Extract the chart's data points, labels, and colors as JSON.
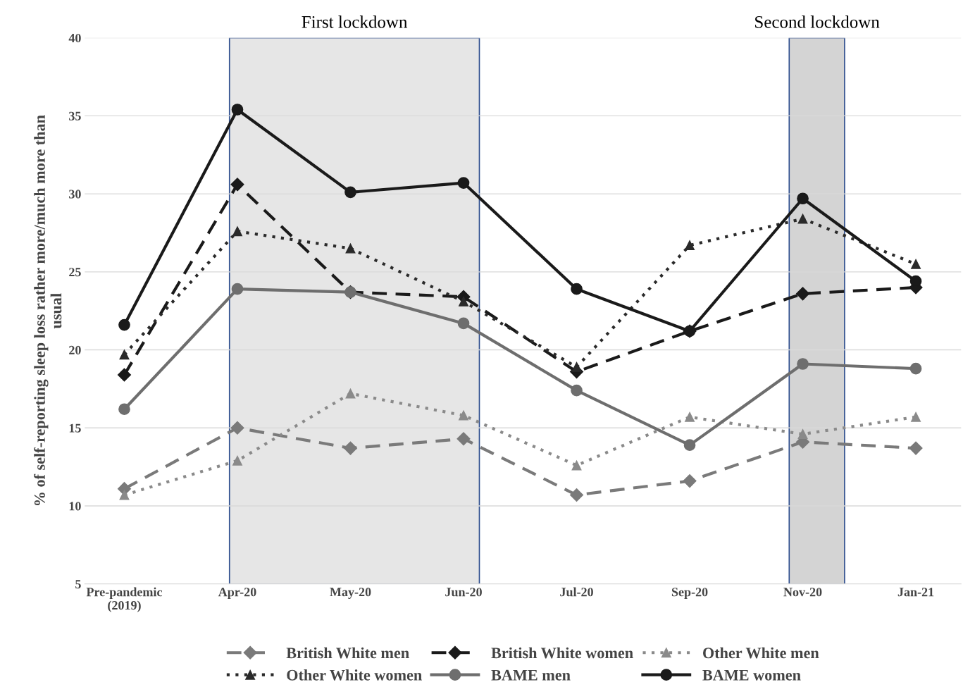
{
  "chart_data": {
    "type": "line",
    "ylabel": "% of self-reporting sleep loss rather more/much more than\nusual",
    "categories": [
      "Pre-pandemic\n(2019)",
      "Apr-20",
      "May-20",
      "Jun-20",
      "Jul-20",
      "Sep-20",
      "Nov-20",
      "Jan-21"
    ],
    "series": [
      {
        "name": "British White men",
        "color": "#7a7a7a",
        "line_style": "dashed",
        "marker": "diamond",
        "values": [
          11.1,
          15.0,
          13.7,
          14.3,
          10.7,
          11.6,
          14.1,
          13.7
        ]
      },
      {
        "name": "British White women",
        "color": "#1a1a1a",
        "line_style": "dashed",
        "marker": "diamond",
        "values": [
          18.4,
          30.6,
          23.7,
          23.4,
          18.6,
          21.2,
          23.6,
          24.0
        ]
      },
      {
        "name": "Other White men",
        "color": "#8a8a8a",
        "line_style": "dotted",
        "marker": "triangle",
        "values": [
          10.7,
          12.9,
          17.2,
          15.8,
          12.6,
          15.7,
          14.6,
          15.7
        ]
      },
      {
        "name": "Other White women",
        "color": "#2a2a2a",
        "line_style": "dotted",
        "marker": "triangle",
        "values": [
          19.7,
          27.6,
          26.5,
          23.1,
          18.9,
          26.7,
          28.4,
          25.5
        ]
      },
      {
        "name": "BAME men",
        "color": "#6e6e6e",
        "line_style": "solid",
        "marker": "circle",
        "values": [
          16.2,
          23.9,
          23.7,
          21.7,
          17.4,
          13.9,
          19.1,
          18.8
        ]
      },
      {
        "name": "BAME women",
        "color": "#1a1a1a",
        "line_style": "solid",
        "marker": "circle",
        "values": [
          21.6,
          35.4,
          30.1,
          30.7,
          23.9,
          21.2,
          29.7,
          24.4
        ]
      }
    ],
    "bands": [
      {
        "axis": "x",
        "from": "Apr-20",
        "to": "Jun-20",
        "label": "First lockdown",
        "color": "#e6e6e6"
      },
      {
        "axis": "x",
        "from": "Nov-20",
        "to": "Nov-20",
        "label": "Second lockdown",
        "color": "#d4d4d4"
      }
    ],
    "ylim": [
      5,
      40
    ],
    "yticks": [
      5,
      10,
      15,
      20,
      25,
      30,
      35,
      40
    ],
    "grid": "y",
    "legend": "bottom"
  }
}
